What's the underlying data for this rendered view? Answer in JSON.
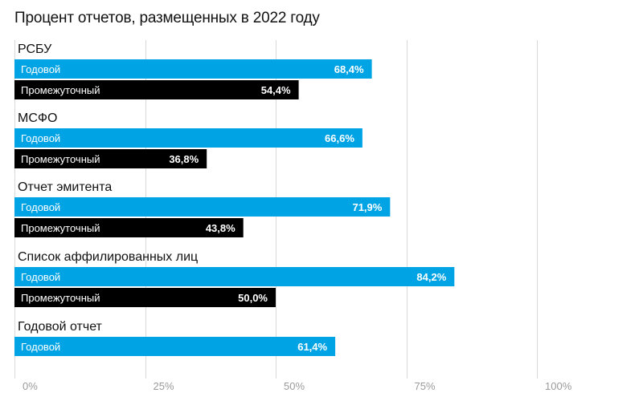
{
  "chart_title": "Процент отчетов, размещенных в 2022 году",
  "chart_data": {
    "type": "bar",
    "orientation": "horizontal",
    "title": "Процент отчетов, размещенных в 2022 году",
    "categories": [
      "РСБУ",
      "МСФО",
      "Отчет эмитента",
      "Список аффилированных лиц",
      "Годовой отчет"
    ],
    "series": [
      {
        "name": "Годовой",
        "color": "#00a3e4",
        "values": [
          68.4,
          66.6,
          71.9,
          84.2,
          61.4
        ],
        "value_labels": [
          "68,4%",
          "66,6%",
          "71,9%",
          "84,2%",
          "61,4%"
        ]
      },
      {
        "name": "Промежуточный",
        "color": "#000000",
        "values": [
          54.4,
          36.8,
          43.8,
          50.0,
          null
        ],
        "value_labels": [
          "54,4%",
          "36,8%",
          "43,8%",
          "50,0%",
          null
        ]
      }
    ],
    "xlim": [
      0,
      100
    ],
    "x_ticks": [
      0,
      25,
      50,
      75,
      100
    ],
    "x_tick_labels": [
      "0%",
      "25%",
      "50%",
      "75%",
      "100%"
    ],
    "grid": true,
    "legend": "none"
  }
}
